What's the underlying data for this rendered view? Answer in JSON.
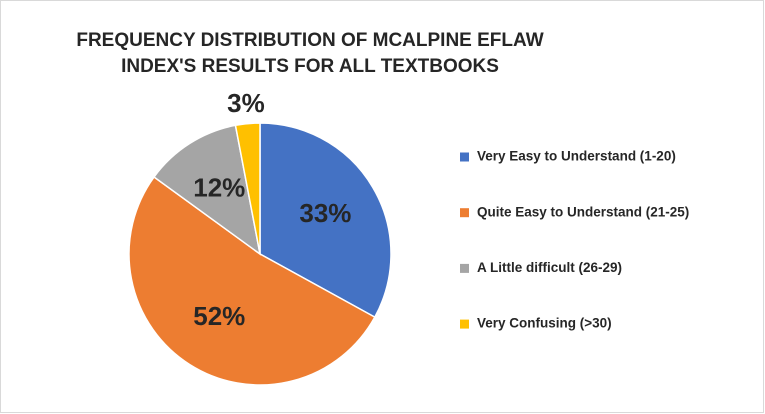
{
  "chart_data": {
    "type": "pie",
    "title": "FREQUENCY DISTRIBUTION OF MCALPINE EFLAW INDEX'S RESULTS FOR ALL TEXTBOOKS",
    "categories": [
      "Very Easy to Understand (1-20)",
      "Quite Easy to Understand (21-25)",
      "A Little difficult (26-29)",
      "Very Confusing (>30)"
    ],
    "values": [
      33,
      52,
      12,
      3
    ],
    "value_labels": [
      "33%",
      "52%",
      "12%",
      "3%"
    ],
    "colors": [
      "#4472c4",
      "#ed7d31",
      "#a5a5a5",
      "#ffc000"
    ],
    "legend": "right"
  }
}
